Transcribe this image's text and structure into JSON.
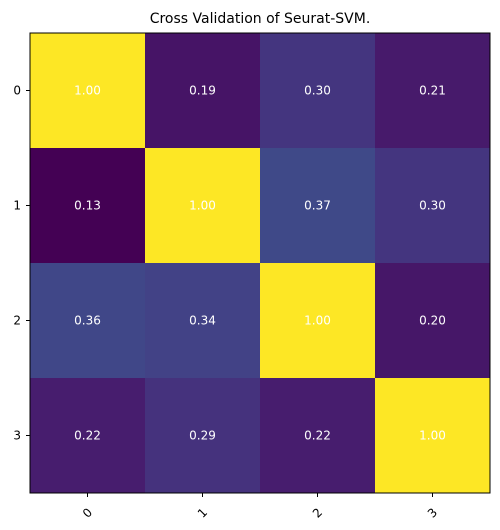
{
  "chart_data": {
    "type": "heatmap",
    "title": "Cross Validation of Seurat-SVM.",
    "x_ticks": [
      "0",
      "1",
      "2",
      "3"
    ],
    "y_ticks": [
      "0",
      "1",
      "2",
      "3"
    ],
    "values": [
      [
        1.0,
        0.19,
        0.3,
        0.21
      ],
      [
        0.13,
        1.0,
        0.37,
        0.3
      ],
      [
        0.36,
        0.34,
        1.0,
        0.2
      ],
      [
        0.22,
        0.29,
        0.22,
        1.0
      ]
    ],
    "value_labels": [
      [
        "1.00",
        "0.19",
        "0.30",
        "0.21"
      ],
      [
        "0.13",
        "1.00",
        "0.37",
        "0.30"
      ],
      [
        "0.36",
        "0.34",
        "1.00",
        "0.20"
      ],
      [
        "0.22",
        "0.29",
        "0.22",
        "1.00"
      ]
    ],
    "colormap": "viridis",
    "grid": false
  }
}
